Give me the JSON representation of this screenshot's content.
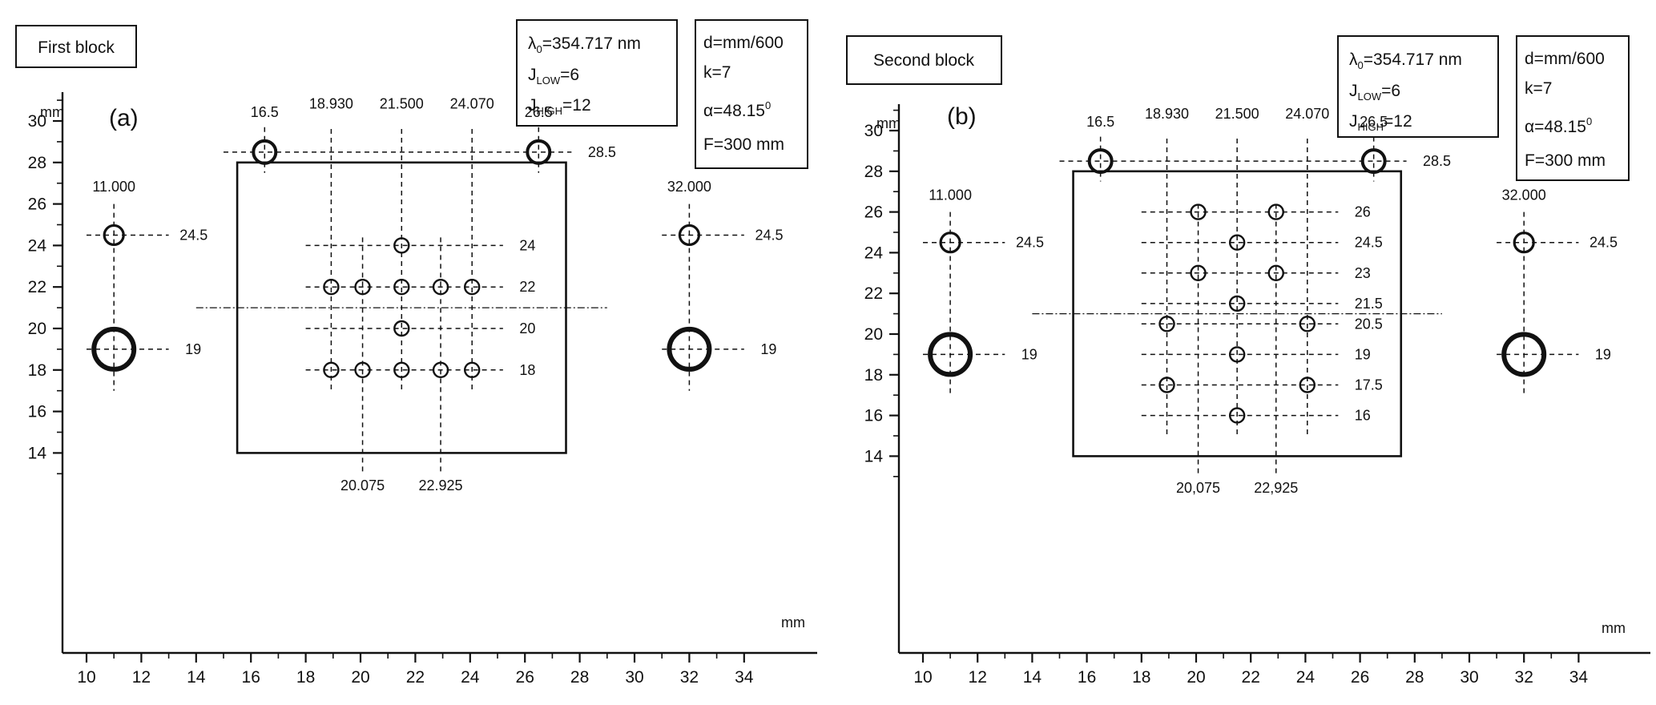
{
  "panels": [
    {
      "id": "a",
      "block_title": "First block",
      "panel_label": "(a)",
      "y_unit": "mm",
      "x_unit": "mm",
      "box1": {
        "lambda_label": "λ0=354.717 nm",
        "j_low": "JLOW=6",
        "j_high": "JHIGH=12"
      },
      "box2": {
        "d": "d=mm/600",
        "k": "k=7",
        "alpha": "α=48.15°",
        "f": "F=300 mm"
      },
      "rect": {
        "x1": 15.5,
        "x2": 27.5,
        "y1": 14,
        "y2": 28
      },
      "optical_axis_y": 21,
      "big_circles": [
        {
          "x": 11,
          "y": 19,
          "size": "large",
          "x_label": "11.000",
          "y_label": "19"
        },
        {
          "x": 32,
          "y": 19,
          "size": "large",
          "x_label": "32.000",
          "y_label": "19"
        }
      ],
      "side_circles": [
        {
          "x": 11,
          "y": 24.5,
          "y_label": "24.5"
        },
        {
          "x": 32,
          "y": 24.5,
          "y_label": "24.5"
        }
      ],
      "top_circles": [
        {
          "x": 16.5,
          "y": 28.5,
          "x_label": "16.5"
        },
        {
          "x": 26.5,
          "y": 28.5,
          "x_label": "26.5"
        }
      ],
      "top_line_label": "28.5",
      "inner_x_labels": [
        "18.930",
        "21.500",
        "24.070"
      ],
      "bottom_x_labels": [
        "20.075",
        "22.925"
      ],
      "inner_points": [
        {
          "x": 21.5,
          "y": 24
        },
        {
          "x": 18.93,
          "y": 22
        },
        {
          "x": 20.075,
          "y": 22
        },
        {
          "x": 21.5,
          "y": 22
        },
        {
          "x": 22.925,
          "y": 22
        },
        {
          "x": 24.07,
          "y": 22
        },
        {
          "x": 21.5,
          "y": 20
        },
        {
          "x": 18.93,
          "y": 18
        },
        {
          "x": 20.075,
          "y": 18
        },
        {
          "x": 21.5,
          "y": 18
        },
        {
          "x": 22.925,
          "y": 18
        },
        {
          "x": 24.07,
          "y": 18
        }
      ],
      "row_labels": [
        {
          "y": 24,
          "label": "24"
        },
        {
          "y": 22,
          "label": "22"
        },
        {
          "y": 20,
          "label": "20"
        },
        {
          "y": 18,
          "label": "18"
        }
      ],
      "x_ticks": [
        "10",
        "12",
        "14",
        "16",
        "18",
        "20",
        "22",
        "24",
        "26",
        "28",
        "30",
        "32",
        "34"
      ],
      "y_ticks": [
        "14",
        "16",
        "18",
        "20",
        "22",
        "24",
        "26",
        "28",
        "30"
      ]
    },
    {
      "id": "b",
      "block_title": "Second block",
      "panel_label": "(b)",
      "y_unit": "mm",
      "x_unit": "mm",
      "box1": {
        "lambda_label": "λ0=354.717 nm",
        "j_low": "JLOW=6",
        "j_high": "JHIGH=12"
      },
      "box2": {
        "d": "d=mm/600",
        "k": "k=7",
        "alpha": "α=48.15°",
        "f": "F=300 mm"
      },
      "rect": {
        "x1": 15.5,
        "x2": 27.5,
        "y1": 14,
        "y2": 28
      },
      "optical_axis_y": 21,
      "big_circles": [
        {
          "x": 11,
          "y": 19,
          "size": "large",
          "x_label": "11.000",
          "y_label": "19"
        },
        {
          "x": 32,
          "y": 19,
          "size": "large",
          "x_label": "32.000",
          "y_label": "19"
        }
      ],
      "side_circles": [
        {
          "x": 11,
          "y": 24.5,
          "y_label": "24.5"
        },
        {
          "x": 32,
          "y": 24.5,
          "y_label": "24.5"
        }
      ],
      "top_circles": [
        {
          "x": 16.5,
          "y": 28.5,
          "x_label": "16.5"
        },
        {
          "x": 26.5,
          "y": 28.5,
          "x_label": "26.5"
        }
      ],
      "top_line_label": "28.5",
      "inner_x_labels": [
        "18.930",
        "21.500",
        "24.070"
      ],
      "bottom_x_labels": [
        "20,075",
        "22,925"
      ],
      "inner_points": [
        {
          "x": 20.075,
          "y": 26
        },
        {
          "x": 22.925,
          "y": 26
        },
        {
          "x": 21.5,
          "y": 24.5
        },
        {
          "x": 20.075,
          "y": 23
        },
        {
          "x": 22.925,
          "y": 23
        },
        {
          "x": 21.5,
          "y": 21.5
        },
        {
          "x": 18.93,
          "y": 20.5
        },
        {
          "x": 24.07,
          "y": 20.5
        },
        {
          "x": 21.5,
          "y": 19
        },
        {
          "x": 18.93,
          "y": 17.5
        },
        {
          "x": 24.07,
          "y": 17.5
        },
        {
          "x": 21.5,
          "y": 16
        }
      ],
      "row_labels": [
        {
          "y": 26,
          "label": "26"
        },
        {
          "y": 24.5,
          "label": "24.5"
        },
        {
          "y": 23,
          "label": "23"
        },
        {
          "y": 21.5,
          "label": "21.5"
        },
        {
          "y": 20.5,
          "label": "20.5"
        },
        {
          "y": 19,
          "label": "19"
        },
        {
          "y": 17.5,
          "label": "17.5"
        },
        {
          "y": 16,
          "label": "16"
        }
      ],
      "x_ticks": [
        "10",
        "12",
        "14",
        "16",
        "18",
        "20",
        "22",
        "24",
        "26",
        "28",
        "30",
        "32",
        "34"
      ],
      "y_ticks": [
        "14",
        "16",
        "18",
        "20",
        "22",
        "24",
        "26",
        "28",
        "30"
      ]
    }
  ]
}
